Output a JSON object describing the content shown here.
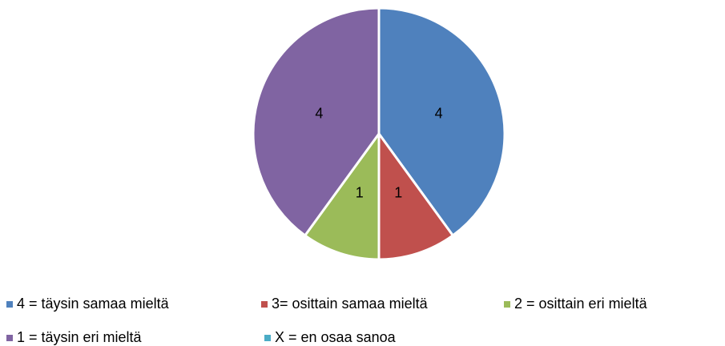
{
  "chart_data": {
    "type": "pie",
    "categories": [
      "4 = täysin samaa mieltä",
      "3= osittain samaa mieltä",
      "2 = osittain eri mieltä",
      "1 = täysin eri mieltä",
      "X = en osaa sanoa"
    ],
    "values": [
      4,
      1,
      1,
      4,
      0
    ],
    "colors": [
      "#4f81bd",
      "#c0504d",
      "#9bbb59",
      "#8064a2",
      "#4bacc6"
    ],
    "legend": "bottom"
  }
}
